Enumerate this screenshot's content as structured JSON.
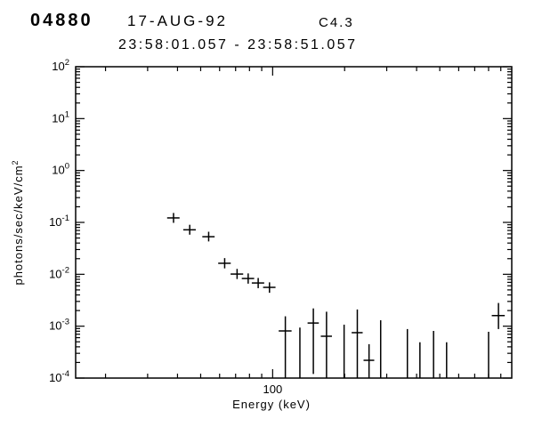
{
  "header": {
    "event_id": "04880",
    "date": "17-AUG-92",
    "goes_class": "C4.3",
    "time_range": "23:58:01.057  -  23:58:51.057"
  },
  "chart_data": {
    "type": "scatter",
    "title": "04880 17-AUG-92 C4.3",
    "subtitle": "23:58:01.057 - 23:58:51.057",
    "xlabel": "Energy (keV)",
    "ylabel_base": "photons/sec/keV/cm",
    "ylabel_exp": "2",
    "x_scale": "log",
    "y_scale": "log",
    "xlim": [
      15,
      1000
    ],
    "ylim_exp": [
      -4,
      2
    ],
    "x_major_tick_labels": [
      100
    ],
    "axis_color": "#000000",
    "background": "#ffffff",
    "legend": "none",
    "grid": "off",
    "marker": "cross-with-error-bars",
    "points": [
      {
        "e": 38.5,
        "xerr": 2.3,
        "f": 0.122,
        "flo": 0.098,
        "fhi": 0.152
      },
      {
        "e": 45,
        "xerr": 2.7,
        "f": 0.072,
        "flo": 0.058,
        "fhi": 0.09
      },
      {
        "e": 54,
        "xerr": 3.2,
        "f": 0.053,
        "flo": 0.043,
        "fhi": 0.066
      },
      {
        "e": 63,
        "xerr": 3.8,
        "f": 0.0163,
        "flo": 0.013,
        "fhi": 0.0205
      },
      {
        "e": 71,
        "xerr": 4.3,
        "f": 0.0101,
        "flo": 0.0081,
        "fhi": 0.0127
      },
      {
        "e": 79,
        "xerr": 4.7,
        "f": 0.0083,
        "flo": 0.0066,
        "fhi": 0.0104
      },
      {
        "e": 87,
        "xerr": 5.2,
        "f": 0.0068,
        "flo": 0.0054,
        "fhi": 0.0085
      },
      {
        "e": 97,
        "xerr": 5.8,
        "f": 0.0056,
        "flo": 0.0044,
        "fhi": 0.007
      },
      {
        "e": 113,
        "xerr": 7,
        "f": 0.00081,
        "flo": 5e-05,
        "fhi": 0.00155
      },
      {
        "e": 130,
        "xerr": 0,
        "f": null,
        "flo": 5e-05,
        "fhi": 0.00094
      },
      {
        "e": 148,
        "xerr": 8,
        "f": 0.00115,
        "flo": 0.00012,
        "fhi": 0.0022
      },
      {
        "e": 168,
        "xerr": 9,
        "f": 0.00064,
        "flo": 5e-05,
        "fhi": 0.0019
      },
      {
        "e": 199,
        "xerr": 0,
        "f": null,
        "flo": 5e-05,
        "fhi": 0.00107
      },
      {
        "e": 226,
        "xerr": 12,
        "f": 0.00075,
        "flo": 5e-05,
        "fhi": 0.0021
      },
      {
        "e": 253,
        "xerr": 13,
        "f": 0.00022,
        "flo": 5e-05,
        "fhi": 0.00045
      },
      {
        "e": 283,
        "xerr": 0,
        "f": null,
        "flo": 5e-05,
        "fhi": 0.0013
      },
      {
        "e": 366,
        "xerr": 0,
        "f": null,
        "flo": 5e-05,
        "fhi": 0.00088
      },
      {
        "e": 413,
        "xerr": 0,
        "f": null,
        "flo": 5e-05,
        "fhi": 0.00049
      },
      {
        "e": 471,
        "xerr": 0,
        "f": null,
        "flo": 5e-05,
        "fhi": 0.00081
      },
      {
        "e": 534,
        "xerr": 0,
        "f": null,
        "flo": 5e-05,
        "fhi": 0.00049
      },
      {
        "e": 800,
        "xerr": 0,
        "f": null,
        "flo": 5e-05,
        "fhi": 0.00078
      },
      {
        "e": 880,
        "xerr": 55,
        "f": 0.0016,
        "flo": 0.00088,
        "fhi": 0.0028
      }
    ]
  }
}
